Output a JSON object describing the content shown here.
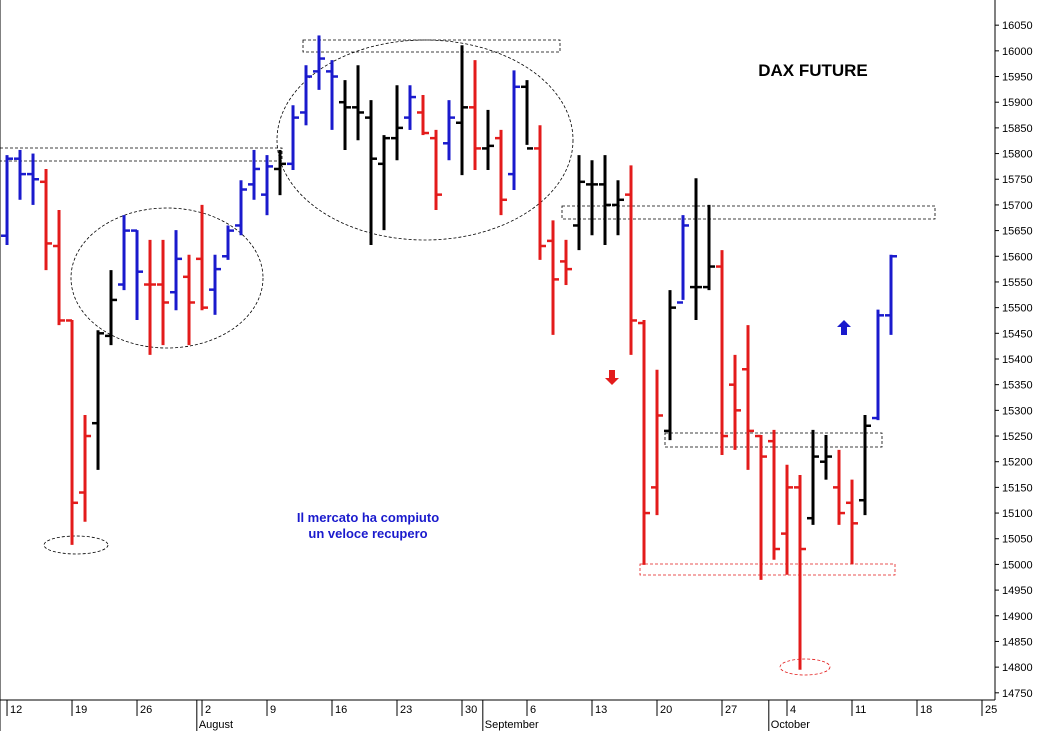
{
  "chart_data": {
    "type": "ohlc",
    "title": "DAX FUTURE",
    "annotations": [
      "Il mercato ha compiuto",
      "un veloce recupero"
    ],
    "open": [
      15640,
      15790,
      15760,
      15745,
      15620,
      15475,
      15140,
      15275,
      15445,
      15545,
      15650,
      15545,
      15545,
      15530,
      15560,
      15595,
      15535,
      15600,
      15660,
      15740,
      15720,
      15770,
      15780,
      15880,
      15960,
      15960,
      15900,
      15890,
      15870,
      15780,
      15830,
      15870,
      15880,
      15830,
      15820,
      15860,
      15890,
      15810,
      15830,
      15760,
      15930,
      15810,
      15630,
      15590,
      15660,
      15740,
      15740,
      15700,
      15720,
      15470,
      15150,
      15260,
      15510,
      15540,
      15540,
      15580,
      15350,
      15380,
      15250,
      15240,
      15060,
      15150,
      15090,
      15200,
      15150,
      15120,
      15125,
      15285,
      15485
    ],
    "high": [
      15797,
      15807,
      15800,
      15770,
      15690,
      15476,
      15291,
      15456,
      15573,
      15680,
      15651,
      15632,
      15632,
      15651,
      15603,
      15700,
      15603,
      15660,
      15748,
      15807,
      15797,
      15807,
      15894,
      15972,
      16030,
      15982,
      15943,
      15972,
      15904,
      15836,
      15933,
      15933,
      15914,
      15846,
      15904,
      16011,
      15982,
      15885,
      15846,
      15962,
      15943,
      15855,
      15670,
      15632,
      15797,
      15787,
      15797,
      15748,
      15777,
      15476,
      15379,
      15534,
      15680,
      15752,
      15700,
      15612,
      15408,
      15466,
      15252,
      15262,
      15194,
      15174,
      15262,
      15252,
      15223,
      15165,
      15291,
      15496,
      15603
    ],
    "low": [
      15622,
      15710,
      15700,
      15573,
      15466,
      15038,
      15083,
      15184,
      15427,
      15534,
      15476,
      15408,
      15427,
      15495,
      15427,
      15495,
      15486,
      15593,
      15641,
      15710,
      15680,
      15719,
      15768,
      15855,
      15924,
      15846,
      15807,
      15826,
      15622,
      15651,
      15787,
      15846,
      15836,
      15690,
      15787,
      15758,
      15768,
      15768,
      15680,
      15729,
      15817,
      15593,
      15447,
      15544,
      15612,
      15641,
      15622,
      15641,
      15408,
      14999,
      15096,
      15242,
      15515,
      15476,
      15534,
      15213,
      15223,
      15184,
      14970,
      15009,
      14980,
      14795,
      15077,
      15165,
      15077,
      15000,
      15096,
      15281,
      15447
    ],
    "close": [
      15790,
      15760,
      15750,
      15625,
      15475,
      15120,
      15250,
      15450,
      15515,
      15650,
      15570,
      15545,
      15510,
      15595,
      15510,
      15500,
      15575,
      15650,
      15730,
      15770,
      15775,
      15780,
      15870,
      15950,
      15985,
      15950,
      15890,
      15880,
      15790,
      15830,
      15850,
      15910,
      15840,
      15720,
      15870,
      15890,
      15810,
      15815,
      15710,
      15930,
      15810,
      15620,
      15555,
      15575,
      15745,
      15740,
      15700,
      15710,
      15475,
      15100,
      15290,
      15500,
      15660,
      15540,
      15580,
      15250,
      15300,
      15260,
      15210,
      15030,
      15150,
      15030,
      15210,
      15210,
      15100,
      15080,
      15270,
      15485,
      15600
    ],
    "colors": [
      "#1a1acd",
      "#1a1acd",
      "#1a1acd",
      "#e31b1b",
      "#e31b1b",
      "#e31b1b",
      "#e31b1b",
      "#000000",
      "#000000",
      "#1a1acd",
      "#1a1acd",
      "#e31b1b",
      "#e31b1b",
      "#1a1acd",
      "#e31b1b",
      "#e31b1b",
      "#1a1acd",
      "#1a1acd",
      "#1a1acd",
      "#1a1acd",
      "#1a1acd",
      "#000000",
      "#1a1acd",
      "#1a1acd",
      "#1a1acd",
      "#1a1acd",
      "#000000",
      "#000000",
      "#000000",
      "#000000",
      "#000000",
      "#1a1acd",
      "#e31b1b",
      "#e31b1b",
      "#1a1acd",
      "#000000",
      "#e31b1b",
      "#000000",
      "#e31b1b",
      "#1a1acd",
      "#000000",
      "#e31b1b",
      "#e31b1b",
      "#e31b1b",
      "#000000",
      "#000000",
      "#000000",
      "#000000",
      "#e31b1b",
      "#e31b1b",
      "#e31b1b",
      "#000000",
      "#1a1acd",
      "#000000",
      "#000000",
      "#e31b1b",
      "#e31b1b",
      "#e31b1b",
      "#e31b1b",
      "#e31b1b",
      "#e31b1b",
      "#e31b1b",
      "#000000",
      "#000000",
      "#e31b1b",
      "#e31b1b",
      "#000000",
      "#1a1acd",
      "#1a1acd"
    ],
    "xlim": [
      -0.54,
      76
    ],
    "xticks": [
      {
        "value": 0,
        "label": "12"
      },
      {
        "value": 5,
        "label": "19"
      },
      {
        "value": 10,
        "label": "26"
      },
      {
        "value": 15,
        "label": "2"
      },
      {
        "value": 20,
        "label": "9"
      },
      {
        "value": 25,
        "label": "16"
      },
      {
        "value": 30,
        "label": "23"
      },
      {
        "value": 35,
        "label": "30"
      },
      {
        "value": 40,
        "label": "6"
      },
      {
        "value": 45,
        "label": "13"
      },
      {
        "value": 50,
        "label": "20"
      },
      {
        "value": 55,
        "label": "27"
      },
      {
        "value": 60,
        "label": "4"
      },
      {
        "value": 65,
        "label": "11"
      },
      {
        "value": 70,
        "label": "18"
      },
      {
        "value": 75,
        "label": "25"
      }
    ],
    "months": [
      {
        "value": 14.6,
        "label": "August"
      },
      {
        "value": 36.6,
        "label": "September"
      },
      {
        "value": 58.6,
        "label": "October"
      }
    ],
    "ylim": [
      14736,
      16099
    ],
    "yticks": [
      14750,
      14800,
      14850,
      14900,
      14950,
      15000,
      15050,
      15100,
      15150,
      15200,
      15250,
      15300,
      15350,
      15400,
      15450,
      15500,
      15550,
      15600,
      15650,
      15700,
      15750,
      15800,
      15850,
      15900,
      15950,
      16000,
      16050
    ]
  }
}
